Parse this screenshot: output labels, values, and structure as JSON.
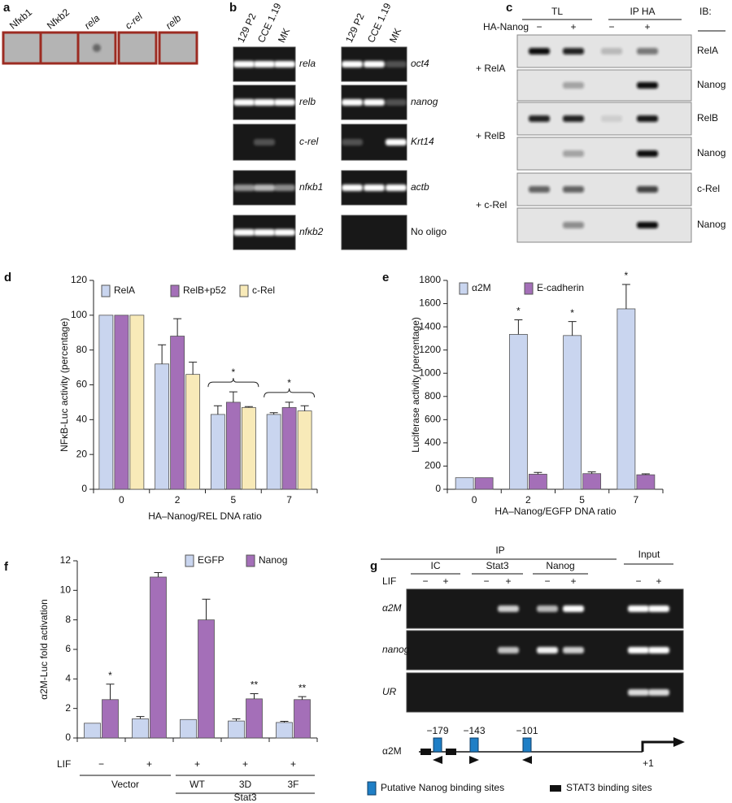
{
  "panel_a": {
    "label": "a",
    "genes": [
      "Nfκb1",
      "Nfκb2",
      "rela",
      "c-rel",
      "relb"
    ]
  },
  "panel_b": {
    "label": "b",
    "left": {
      "lanes": [
        "129 P2",
        "CCE 1.19",
        "MK"
      ],
      "genes": [
        "rela",
        "relb",
        "c-rel",
        "nfκb1",
        "nfκb2"
      ]
    },
    "right": {
      "lanes": [
        "129 P2",
        "CCE 1.19",
        "MK"
      ],
      "genes": [
        "oct4",
        "nanog",
        "Krt14",
        "actb",
        "No oligo"
      ]
    }
  },
  "panel_c": {
    "label": "c",
    "groups": [
      "TL",
      "IP HA"
    ],
    "ib": "IB:",
    "ha": "HA-Nanog",
    "signs": [
      "−",
      "+",
      "−",
      "+"
    ],
    "conditions": [
      "+ RelA",
      "+ RelB",
      "+ c-Rel"
    ],
    "blots": [
      "RelA",
      "Nanog",
      "RelB",
      "Nanog",
      "c-Rel",
      "Nanog"
    ]
  },
  "chart_data": [
    {
      "type": "bar",
      "label": "d",
      "ylabel": "NFκB-Luc activity (percentage)",
      "xlabel": "HA–Nanog/REL DNA ratio",
      "categories": [
        "0",
        "2",
        "5",
        "7"
      ],
      "series": [
        {
          "name": "RelA",
          "color": "#c9d5ef",
          "values": [
            100,
            72,
            43,
            43
          ],
          "errors": [
            null,
            11,
            5,
            1
          ]
        },
        {
          "name": "RelB+p52",
          "color": "#a46fb8",
          "values": [
            100,
            88,
            50,
            47
          ],
          "errors": [
            null,
            10,
            6,
            3
          ]
        },
        {
          "name": "c-Rel",
          "color": "#f8eab8",
          "values": [
            100,
            66,
            47,
            45
          ],
          "errors": [
            null,
            7,
            0.5,
            3
          ]
        }
      ],
      "ylim": [
        0,
        120
      ],
      "yticks": [
        0,
        20,
        40,
        60,
        80,
        100,
        120
      ],
      "annotations": [
        {
          "text": "*",
          "category": 2,
          "bracket": true
        },
        {
          "text": "*",
          "category": 3,
          "bracket": true
        }
      ]
    },
    {
      "type": "bar",
      "label": "e",
      "ylabel": "Luciferase activity (percentage)",
      "xlabel": "HA–Nanog/EGFP DNA ratio",
      "categories": [
        "0",
        "2",
        "5",
        "7"
      ],
      "series": [
        {
          "name": "α2M",
          "color": "#c9d5ef",
          "values": [
            100,
            1335,
            1325,
            1555
          ],
          "errors": [
            null,
            125,
            120,
            210
          ]
        },
        {
          "name": "E-cadherin",
          "color": "#a46fb8",
          "values": [
            100,
            130,
            135,
            125
          ],
          "errors": [
            null,
            15,
            15,
            8
          ]
        }
      ],
      "ylim": [
        0,
        1800
      ],
      "yticks": [
        0,
        200,
        400,
        600,
        800,
        1000,
        1200,
        1400,
        1600,
        1800
      ],
      "annotations": [
        {
          "text": "*",
          "category": 1
        },
        {
          "text": "*",
          "category": 2
        },
        {
          "text": "*",
          "category": 3
        }
      ]
    },
    {
      "type": "bar",
      "label": "f",
      "ylabel": "α2M-Luc fold activation",
      "lif_label": "LIF",
      "lif": [
        "−",
        "+",
        "+",
        "+",
        "+"
      ],
      "categories": [
        null,
        null,
        "WT",
        "3D",
        "3F"
      ],
      "groups": [
        {
          "label": "Vector",
          "members": [
            0,
            1
          ]
        },
        {
          "label": "Stat3",
          "members": [
            2,
            3,
            4
          ]
        }
      ],
      "series": [
        {
          "name": "EGFP",
          "color": "#c9d5ef",
          "values": [
            1.0,
            1.3,
            1.25,
            1.15,
            1.05
          ],
          "errors": [
            null,
            0.15,
            null,
            0.15,
            0.08
          ]
        },
        {
          "name": "Nanog",
          "color": "#a46fb8",
          "values": [
            2.6,
            10.9,
            8.0,
            2.65,
            2.6
          ],
          "errors": [
            1.05,
            0.3,
            1.4,
            0.35,
            0.2
          ]
        }
      ],
      "ylim": [
        0,
        12
      ],
      "yticks": [
        0,
        2,
        4,
        6,
        8,
        10,
        12
      ],
      "annotations": [
        {
          "text": "*",
          "category": 0
        },
        {
          "text": "**",
          "category": 3
        },
        {
          "text": "**",
          "category": 4
        }
      ]
    }
  ],
  "panel_g": {
    "label": "g",
    "ip": "IP",
    "antibodies": [
      "IC",
      "Stat3",
      "Nanog"
    ],
    "input": "Input",
    "lif": "LIF",
    "signs": [
      "−",
      "+",
      "−",
      "+",
      "−",
      "+",
      "−",
      "+"
    ],
    "rows": [
      "α2M",
      "nanog",
      "UR"
    ],
    "sites": [
      "−179",
      "−143",
      "−101"
    ],
    "gene": "α2M",
    "start": "+1",
    "legend": [
      "Putative Nanog binding sites",
      "STAT3 binding sites"
    ]
  }
}
